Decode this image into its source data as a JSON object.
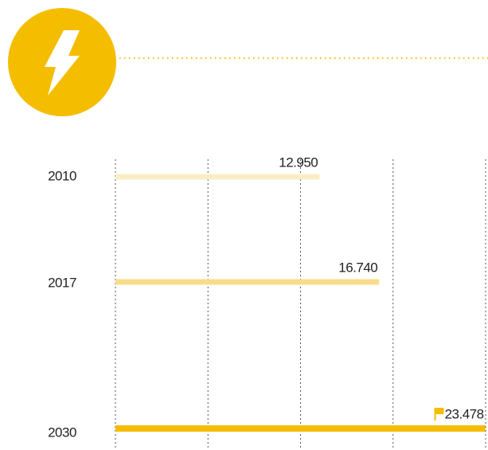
{
  "chart_data": {
    "type": "bar",
    "orientation": "horizontal",
    "categories": [
      "2010",
      "2017",
      "2030"
    ],
    "values": [
      12950,
      16740,
      23478
    ],
    "value_labels": [
      "12.950",
      "16.740",
      "23.478"
    ],
    "colors": [
      "#faedc4",
      "#f8dc8c",
      "#f5bd00"
    ],
    "xlim": [
      0,
      23500
    ],
    "xticks": [
      0,
      5875,
      11750,
      17625,
      23500
    ],
    "grid": true
  }
}
